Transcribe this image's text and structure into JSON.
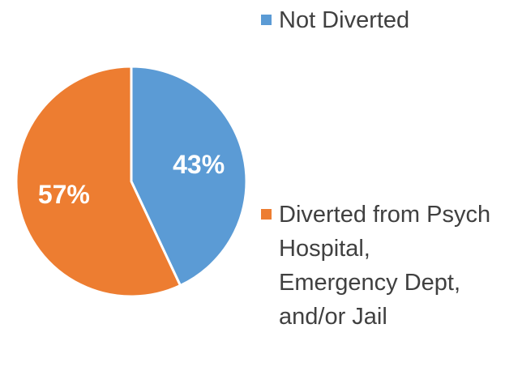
{
  "chart_data": {
    "type": "pie",
    "categories": [
      "Not Diverted",
      "Diverted from Psych Hospital, Emergency Dept, and/or Jail"
    ],
    "values": [
      43,
      57
    ],
    "value_labels": [
      "43%",
      "57%"
    ],
    "colors": [
      "#5b9bd5",
      "#ed7d31"
    ],
    "legend": "right"
  }
}
